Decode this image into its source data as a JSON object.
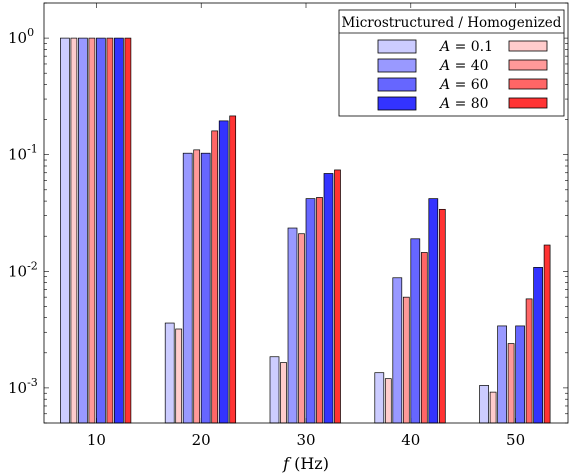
{
  "chart_data": {
    "type": "bar",
    "y_scale": "log",
    "ylim": [
      0.0005,
      2.0
    ],
    "categories": [
      "10",
      "20",
      "30",
      "40",
      "50"
    ],
    "xlabel": "f (Hz)",
    "xlabel_var": "f",
    "xlabel_unit": " (Hz)",
    "ylabel": "",
    "grid": false,
    "legend_position": "top-right",
    "legend_title": "Microstructured / Homogenized",
    "y_ticks": [
      {
        "value": 0.001,
        "base": "10",
        "exp": "-3"
      },
      {
        "value": 0.01,
        "base": "10",
        "exp": "-2"
      },
      {
        "value": 0.1,
        "base": "10",
        "exp": "-1"
      },
      {
        "value": 1,
        "base": "10",
        "exp": "0"
      }
    ],
    "amplitudes": [
      {
        "label": "A = 0.1",
        "var": "A",
        "val": "0.1"
      },
      {
        "label": "A = 40",
        "var": "A",
        "val": "40"
      },
      {
        "label": "A = 60",
        "var": "A",
        "val": "60"
      },
      {
        "label": "A = 80",
        "var": "A",
        "val": "80"
      }
    ],
    "series": [
      {
        "group": "Microstructured",
        "amplitude": "A = 0.1",
        "color": "#ccccff",
        "values": [
          1.0,
          0.0036,
          0.00185,
          0.00135,
          0.00105
        ]
      },
      {
        "group": "Homogenized",
        "amplitude": "A = 0.1",
        "color": "#ffcccc",
        "values": [
          1.0,
          0.0032,
          0.00165,
          0.0012,
          0.00092
        ]
      },
      {
        "group": "Microstructured",
        "amplitude": "A = 40",
        "color": "#9999ff",
        "values": [
          1.0,
          0.103,
          0.0235,
          0.0088,
          0.0034
        ]
      },
      {
        "group": "Homogenized",
        "amplitude": "A = 40",
        "color": "#ff9999",
        "values": [
          1.0,
          0.11,
          0.021,
          0.006,
          0.0024
        ]
      },
      {
        "group": "Microstructured",
        "amplitude": "A = 60",
        "color": "#6666ff",
        "values": [
          1.0,
          0.103,
          0.042,
          0.019,
          0.0034
        ]
      },
      {
        "group": "Homogenized",
        "amplitude": "A = 60",
        "color": "#ff6666",
        "values": [
          1.0,
          0.16,
          0.043,
          0.0145,
          0.0058
        ]
      },
      {
        "group": "Microstructured",
        "amplitude": "A = 80",
        "color": "#3333ff",
        "values": [
          1.0,
          0.195,
          0.069,
          0.042,
          0.0108
        ]
      },
      {
        "group": "Homogenized",
        "amplitude": "A = 80",
        "color": "#ff3333",
        "values": [
          1.0,
          0.215,
          0.074,
          0.034,
          0.0168
        ]
      }
    ]
  }
}
